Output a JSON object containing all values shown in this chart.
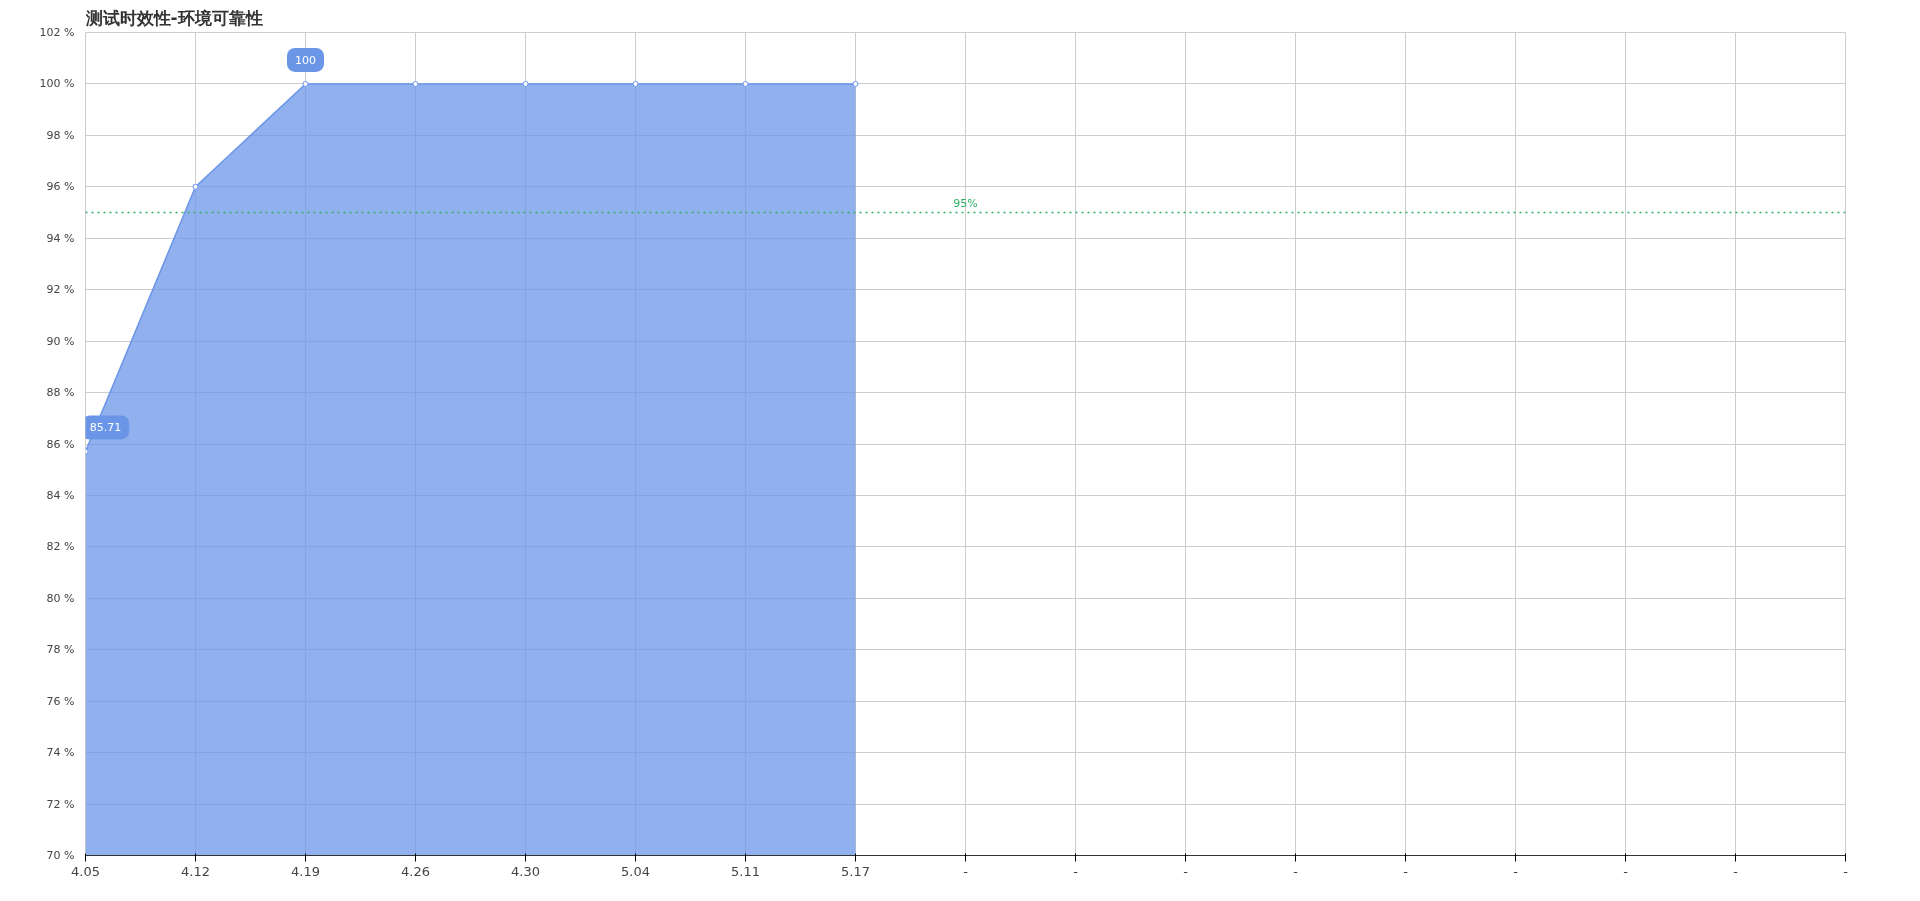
{
  "chart_data": {
    "type": "area",
    "title": "测试时效性-环境可靠性",
    "categories": [
      "4.05",
      "4.12",
      "4.19",
      "4.26",
      "4.30",
      "5.04",
      "5.11",
      "5.17",
      "-",
      "-",
      "-",
      "-",
      "-",
      "-",
      "-",
      "-",
      "-"
    ],
    "series": [
      {
        "color": "#6b96e8",
        "values": [
          85.71,
          96,
          100,
          100,
          100,
          100,
          100,
          100,
          null,
          null,
          null,
          null,
          null,
          null,
          null,
          null,
          null
        ]
      }
    ],
    "ylim": [
      70,
      102
    ],
    "yticks": [
      {
        "value": 70,
        "label": "70 %"
      },
      {
        "value": 72,
        "label": "72 %"
      },
      {
        "value": 74,
        "label": "74 %"
      },
      {
        "value": 76,
        "label": "76 %"
      },
      {
        "value": 78,
        "label": "78 %"
      },
      {
        "value": 80,
        "label": "80 %"
      },
      {
        "value": 82,
        "label": "82 %"
      },
      {
        "value": 84,
        "label": "84 %"
      },
      {
        "value": 86,
        "label": "86 %"
      },
      {
        "value": 88,
        "label": "88 %"
      },
      {
        "value": 90,
        "label": "90 %"
      },
      {
        "value": 92,
        "label": "92 %"
      },
      {
        "value": 94,
        "label": "94 %"
      },
      {
        "value": 96,
        "label": "96 %"
      },
      {
        "value": 98,
        "label": "98 %"
      },
      {
        "value": 100,
        "label": "100 %"
      },
      {
        "value": 102,
        "label": "102 %"
      }
    ],
    "ref_lines": [
      {
        "axis": "y",
        "value": 95,
        "label": "95%",
        "color": "#2eaf62",
        "line_style": "dotted"
      }
    ],
    "annotations": [
      {
        "text": "85.71",
        "x": "4.05",
        "y": 85.71
      },
      {
        "text": "100",
        "x": "4.19",
        "y": 100
      }
    ],
    "grid": true,
    "marker": "circle"
  }
}
